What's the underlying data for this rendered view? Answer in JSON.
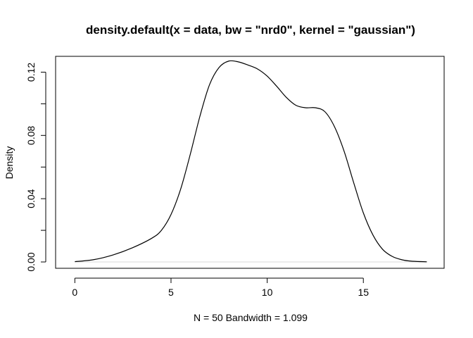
{
  "chart_data": {
    "type": "line",
    "title": "density.default(x = data, bw = \"nrd0\", kernel = \"gaussian\")",
    "xlabel": "N = 50   Bandwidth = 1.099",
    "ylabel": "Density",
    "xlim": [
      -1.0,
      19.2
    ],
    "ylim": [
      -0.004,
      0.13
    ],
    "x_ticks": [
      0,
      5,
      10,
      15
    ],
    "x_tick_labels": [
      "0",
      "5",
      "10",
      "15"
    ],
    "y_ticks": [
      0.0,
      0.04,
      0.08,
      0.12
    ],
    "y_tick_labels": [
      "0.00",
      "0.04",
      "0.08",
      "0.12"
    ],
    "grid": false,
    "legend": "none",
    "series": [
      {
        "x": [
          0.0,
          1.0,
          2.0,
          3.0,
          4.0,
          4.5,
          5.0,
          5.5,
          6.0,
          6.5,
          7.0,
          7.5,
          8.0,
          8.5,
          9.0,
          9.5,
          10.0,
          10.5,
          11.0,
          11.5,
          12.0,
          12.5,
          13.0,
          13.5,
          14.0,
          14.5,
          15.0,
          15.5,
          16.0,
          16.5,
          17.0,
          17.5,
          18.3
        ],
        "y": [
          0.0002,
          0.0015,
          0.0045,
          0.009,
          0.015,
          0.02,
          0.03,
          0.046,
          0.068,
          0.092,
          0.112,
          0.123,
          0.127,
          0.1265,
          0.1245,
          0.122,
          0.1175,
          0.111,
          0.104,
          0.099,
          0.0975,
          0.0975,
          0.095,
          0.0855,
          0.07,
          0.05,
          0.031,
          0.017,
          0.008,
          0.0035,
          0.0014,
          0.0005,
          0.0001
        ]
      }
    ]
  }
}
